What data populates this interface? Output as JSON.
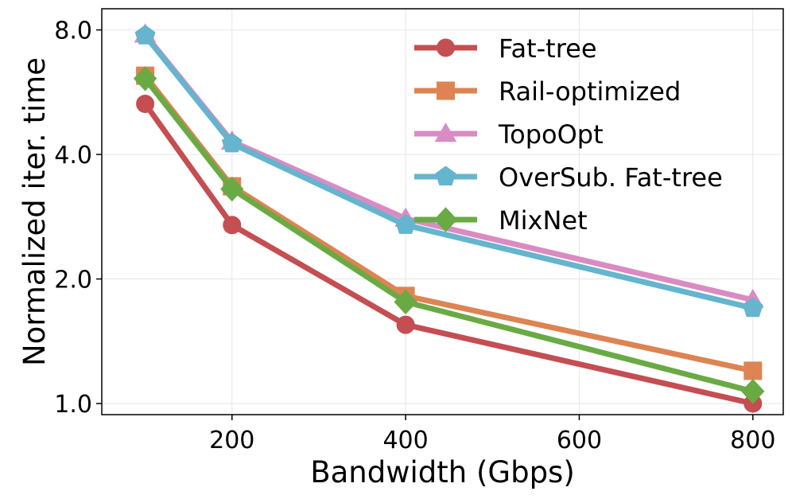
{
  "chart_data": {
    "type": "line",
    "xlabel": "Bandwidth (Gbps)",
    "ylabel": "Normalized iter. time",
    "x": [
      100,
      200,
      400,
      800
    ],
    "xlim": [
      50,
      835
    ],
    "xticks": [
      200,
      400,
      600,
      800
    ],
    "xtick_labels": [
      "200",
      "400",
      "600",
      "800"
    ],
    "yscale": "log2",
    "ylim": [
      0.94,
      9.0
    ],
    "yticks": [
      1.0,
      2.0,
      4.0,
      8.0
    ],
    "ytick_labels": [
      "1.0",
      "2.0",
      "4.0",
      "8.0"
    ],
    "grid": true,
    "legend_position": "top-right",
    "series": [
      {
        "name": "Fat-tree",
        "color": "#c44e52",
        "marker": "circle",
        "values": [
          5.3,
          2.7,
          1.55,
          1.0
        ]
      },
      {
        "name": "Rail-optimized",
        "color": "#dd8452",
        "marker": "square",
        "values": [
          6.2,
          3.35,
          1.82,
          1.2
        ]
      },
      {
        "name": "TopoOpt",
        "color": "#da8bc3",
        "marker": "triangle",
        "values": [
          7.8,
          4.3,
          2.8,
          1.78
        ]
      },
      {
        "name": "OverSub. Fat-tree",
        "color": "#64b5cd",
        "marker": "pentagon",
        "values": [
          7.75,
          4.25,
          2.7,
          1.7
        ]
      },
      {
        "name": "MixNet",
        "color": "#6aaa45",
        "marker": "diamond",
        "values": [
          6.1,
          3.3,
          1.76,
          1.07
        ]
      }
    ]
  }
}
